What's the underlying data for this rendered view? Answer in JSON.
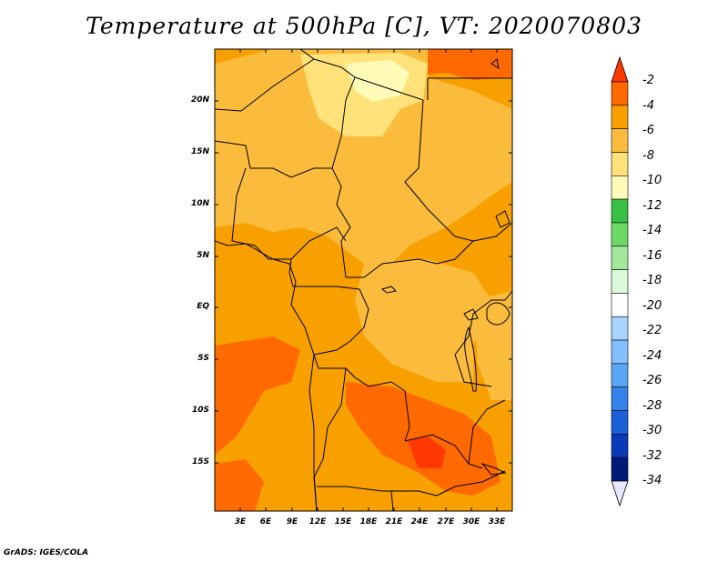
{
  "title": "Temperature at 500hPa [C], VT: 2020070803",
  "credit": "GrADS: IGES/COLA",
  "map": {
    "variable": "Temperature",
    "level": "500hPa",
    "units": "C",
    "valid_time": "2020070803",
    "lat_ticks": [
      "20N",
      "15N",
      "10N",
      "5N",
      "EQ",
      "5S",
      "10S",
      "15S"
    ],
    "lon_ticks": [
      "3E",
      "6E",
      "9E",
      "12E",
      "15E",
      "18E",
      "21E",
      "24E",
      "27E",
      "30E",
      "33E"
    ]
  },
  "colorbar": {
    "labels": [
      "-2",
      "-4",
      "-6",
      "-8",
      "-10",
      "-12",
      "-14",
      "-16",
      "-18",
      "-20",
      "-22",
      "-24",
      "-26",
      "-28",
      "-30",
      "-32",
      "-34"
    ],
    "colors": [
      "#ff3700",
      "#ff6a00",
      "#f7a000",
      "#fbbc3d",
      "#ffe27a",
      "#fffbb8",
      "#37c043",
      "#6cd866",
      "#a2e89a",
      "#d9fadb",
      "#ffffff",
      "#a9d3ff",
      "#84c0ff",
      "#5aa5f5",
      "#3582ea",
      "#1a5ed8",
      "#0a3ab8",
      "#001a78",
      "#e8e8ff"
    ]
  }
}
